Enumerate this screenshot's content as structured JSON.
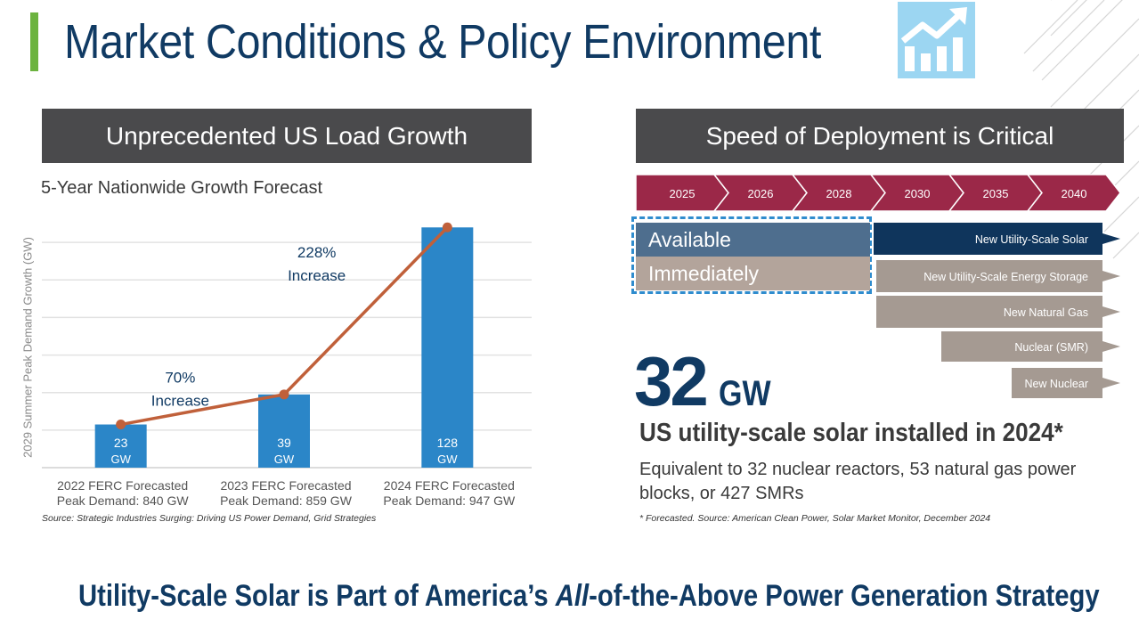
{
  "slide": {
    "title": "Market Conditions & Policy Environment",
    "footer": "Utility-Scale Solar is Part of America's All-of-the-Above Power Generation Strategy",
    "footer_parts": [
      "Utility-Scale Solar is Part of America’s ",
      "All",
      "-of-the-Above Power Generation Strategy"
    ]
  },
  "colors": {
    "navy": "#103a63",
    "green": "#6cb33f",
    "bar_blue": "#2b86c8",
    "line_orange": "#c0603a",
    "maroon": "#9b2848"
  },
  "left_panel": {
    "header": "Unprecedented US Load Growth",
    "subtitle": "5-Year Nationwide Growth Forecast",
    "source": "Source: Strategic Industries Surging: Driving US Power Demand, Grid Strategies"
  },
  "chart_data": {
    "type": "bar",
    "title": "5-Year Nationwide Growth Forecast",
    "ylabel": "2029 Summer Peak Demand Growth (GW)",
    "xlabel": "",
    "categories": [
      "2022 FERC Forecasted\nPeak Demand: 840 GW",
      "2023 FERC Forecasted\nPeak Demand: 859 GW",
      "2024 FERC Forecasted\nPeak Demand: 947 GW"
    ],
    "category_lines": [
      [
        "2022 FERC Forecasted",
        "Peak Demand: 840 GW"
      ],
      [
        "2023 FERC Forecasted",
        "Peak Demand: 859 GW"
      ],
      [
        "2024 FERC Forecasted",
        "Peak Demand: 947 GW"
      ]
    ],
    "values": [
      23,
      39,
      128
    ],
    "value_labels": [
      [
        "23",
        "GW"
      ],
      [
        "39",
        "GW"
      ],
      [
        "128",
        "GW"
      ]
    ],
    "ylim": [
      0,
      140
    ],
    "grid": true,
    "gridline_values": [
      20,
      40,
      60,
      80,
      100,
      120
    ],
    "trend_line": {
      "values": [
        23,
        39,
        128
      ]
    },
    "annotations": [
      {
        "lines": [
          "70%",
          "Increase"
        ],
        "between": [
          0,
          1
        ]
      },
      {
        "lines": [
          "228%",
          "Increase"
        ],
        "between": [
          1,
          2
        ]
      }
    ]
  },
  "right_panel": {
    "header": "Speed of Deployment is Critical",
    "years": [
      "2025",
      "2026",
      "2028",
      "2030",
      "2035",
      "2040"
    ],
    "available": "Available",
    "immediately": "Immediately",
    "timeline_bars": [
      {
        "label": "New Utility-Scale Solar",
        "color": "#0f355c"
      },
      {
        "label": "New Utility-Scale Energy Storage",
        "color": "#a59a92"
      },
      {
        "label": "New Natural Gas",
        "color": "#a59a92"
      },
      {
        "label": "Nuclear (SMR)",
        "color": "#a59a92"
      },
      {
        "label": "New Nuclear",
        "color": "#a59a92"
      }
    ],
    "big_number": "32",
    "big_unit": "GW",
    "installed_text": "US utility-scale solar installed in 2024*",
    "equivalent_text": "Equivalent to 32 nuclear reactors, 53 natural gas power blocks, or 427 SMRs",
    "footnote": "* Forecasted. Source: American Clean Power, Solar Market Monitor, December 2024"
  }
}
